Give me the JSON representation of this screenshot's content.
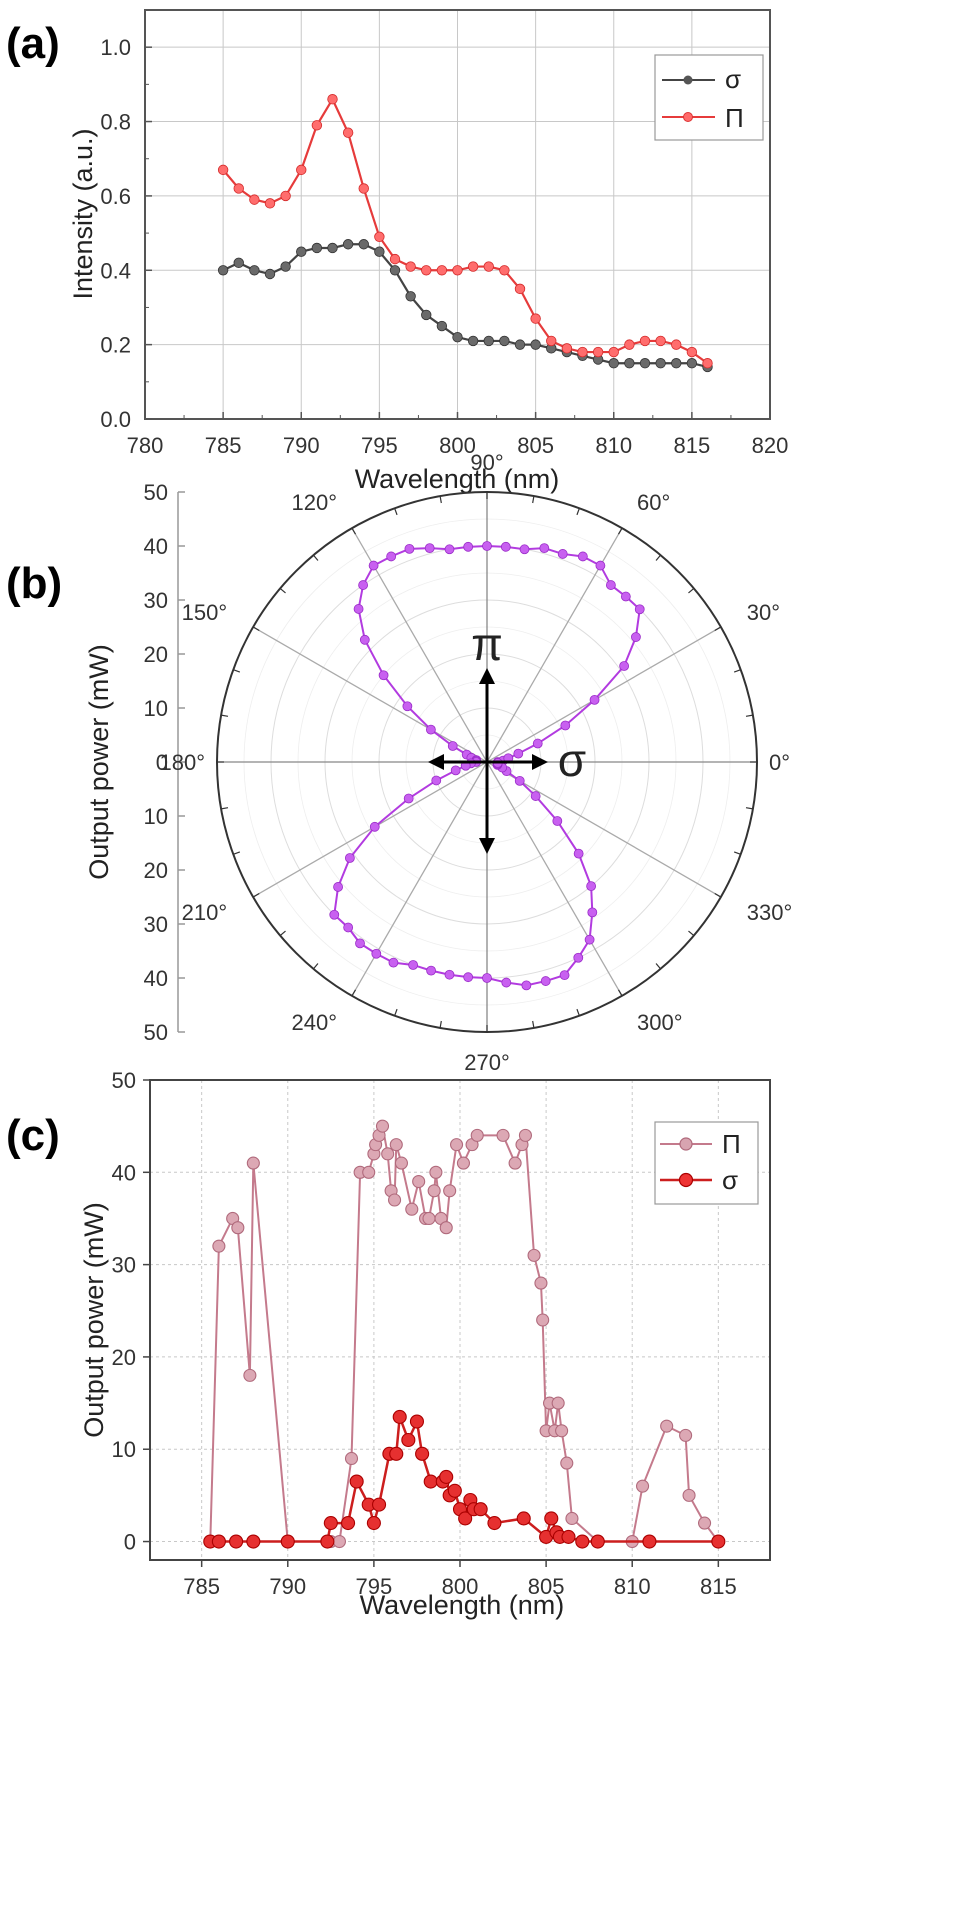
{
  "chart_data": [
    {
      "type": "line",
      "panel": "(a)",
      "xlabel": "Wavelength (nm)",
      "ylabel": "Intensity (a.u.)",
      "xlim": [
        780,
        820
      ],
      "ylim": [
        0.0,
        1.1
      ],
      "xticks": [
        "780",
        "785",
        "790",
        "795",
        "800",
        "805",
        "810",
        "815",
        "820"
      ],
      "yticks": [
        "0.0",
        "0.2",
        "0.4",
        "0.6",
        "0.8",
        "1.0"
      ],
      "grid": true,
      "legend_position": "top-right",
      "series": [
        {
          "name": "σ",
          "color": "#444444",
          "x": [
            785,
            786,
            787,
            788,
            789,
            790,
            791,
            792,
            793,
            794,
            795,
            796,
            797,
            798,
            799,
            800,
            801,
            802,
            803,
            804,
            805,
            806,
            807,
            808,
            809,
            810,
            811,
            812,
            813,
            814,
            815,
            816
          ],
          "y": [
            0.4,
            0.42,
            0.4,
            0.39,
            0.41,
            0.45,
            0.46,
            0.46,
            0.47,
            0.47,
            0.45,
            0.4,
            0.33,
            0.28,
            0.25,
            0.22,
            0.21,
            0.21,
            0.21,
            0.2,
            0.2,
            0.19,
            0.18,
            0.17,
            0.16,
            0.15,
            0.15,
            0.15,
            0.15,
            0.15,
            0.15,
            0.14
          ]
        },
        {
          "name": "Π",
          "color": "#e63b3b",
          "x": [
            785,
            786,
            787,
            788,
            789,
            790,
            791,
            792,
            793,
            794,
            795,
            796,
            797,
            798,
            799,
            800,
            801,
            802,
            803,
            804,
            805,
            806,
            807,
            808,
            809,
            810,
            811,
            812,
            813,
            814,
            815,
            816
          ],
          "y": [
            0.67,
            0.62,
            0.59,
            0.58,
            0.6,
            0.67,
            0.79,
            0.86,
            0.77,
            0.62,
            0.49,
            0.43,
            0.41,
            0.4,
            0.4,
            0.4,
            0.41,
            0.41,
            0.4,
            0.35,
            0.27,
            0.21,
            0.19,
            0.18,
            0.18,
            0.18,
            0.2,
            0.21,
            0.21,
            0.2,
            0.18,
            0.15
          ]
        }
      ]
    },
    {
      "type": "polar",
      "panel": "(b)",
      "ylabel": "Output power (mW)",
      "rlim": [
        0,
        50
      ],
      "rticks": [
        "50",
        "40",
        "30",
        "20",
        "10",
        "0",
        "10",
        "20",
        "30",
        "40",
        "50"
      ],
      "angle_labels": [
        "0°",
        "30°",
        "60°",
        "90°",
        "120°",
        "150°",
        "180°",
        "210°",
        "240°",
        "270°",
        "300°",
        "330°"
      ],
      "annotations": [
        "π",
        "σ"
      ],
      "series": [
        {
          "name": "",
          "color": "#b23be0",
          "theta": [
            0,
            5,
            10,
            15,
            20,
            25,
            30,
            35,
            40,
            45,
            50,
            55,
            60,
            65,
            70,
            75,
            80,
            85,
            90,
            95,
            100,
            105,
            110,
            115,
            120,
            125,
            130,
            135,
            140,
            145,
            150,
            155,
            160,
            165,
            170,
            175,
            180,
            185,
            190,
            195,
            200,
            205,
            210,
            215,
            220,
            225,
            230,
            235,
            240,
            245,
            250,
            255,
            260,
            265,
            270,
            275,
            280,
            285,
            290,
            295,
            300,
            305,
            310,
            315,
            320,
            325,
            330,
            335,
            340,
            345,
            350,
            355
          ],
          "r": [
            2,
            3,
            4,
            6,
            10,
            16,
            23,
            31,
            36,
            40,
            40,
            40,
            42,
            42,
            41,
            41,
            40,
            40,
            40,
            40,
            40,
            41,
            42,
            42,
            42,
            40,
            37,
            32,
            25,
            18,
            12,
            7,
            4,
            3,
            2,
            2,
            2,
            3,
            4,
            6,
            10,
            16,
            24,
            31,
            36,
            40,
            40,
            41,
            41,
            41,
            40,
            40,
            40,
            40,
            40,
            41,
            42,
            42,
            42,
            40,
            38,
            34,
            30,
            24,
            17,
            11,
            7,
            4,
            3,
            2,
            2,
            2
          ]
        }
      ]
    },
    {
      "type": "line",
      "panel": "(c)",
      "xlabel": "Wavelength (nm)",
      "ylabel": "Output power (mW)",
      "xlim": [
        782,
        818
      ],
      "ylim": [
        -2,
        50
      ],
      "xticks": [
        "785",
        "790",
        "795",
        "800",
        "805",
        "810",
        "815"
      ],
      "yticks": [
        "0",
        "10",
        "20",
        "30",
        "40",
        "50"
      ],
      "grid": true,
      "legend_position": "top-right",
      "series": [
        {
          "name": "Π",
          "color": "#c47a8c",
          "x": [
            785.5,
            786.0,
            786.8,
            787.1,
            787.8,
            788.0,
            790.0,
            792.5,
            793.0,
            793.7,
            794.2,
            794.7,
            795.0,
            795.1,
            795.3,
            795.5,
            795.8,
            796.0,
            796.2,
            796.3,
            796.6,
            797.2,
            797.6,
            798.0,
            798.2,
            798.5,
            798.6,
            798.9,
            799.2,
            799.4,
            799.8,
            800.2,
            800.7,
            801.0,
            802.5,
            803.2,
            803.6,
            803.8,
            804.3,
            804.7,
            804.8,
            805.0,
            805.2,
            805.5,
            805.7,
            805.9,
            806.2,
            806.5,
            808.0,
            810.0,
            810.6,
            812.0,
            813.1,
            813.3,
            814.2,
            815.0
          ],
          "y": [
            0,
            32,
            35,
            34,
            18,
            41,
            0,
            0,
            0,
            9,
            40,
            40,
            42,
            43,
            44,
            45,
            42,
            38,
            37,
            43,
            41,
            36,
            39,
            35,
            35,
            38,
            40,
            35,
            34,
            38,
            43,
            41,
            43,
            44,
            44,
            41,
            43,
            44,
            31,
            28,
            24,
            12,
            15,
            12,
            15,
            12,
            8.5,
            2.5,
            0,
            0,
            6,
            12.5,
            11.5,
            5,
            2,
            0
          ]
        },
        {
          "name": "σ",
          "color": "#cc1e1e",
          "x": [
            785.5,
            786.0,
            787.0,
            788.0,
            790.0,
            792.3,
            792.5,
            793.5,
            794.0,
            794.7,
            795.0,
            795.3,
            795.9,
            796.3,
            796.5,
            797.0,
            797.5,
            797.8,
            798.3,
            799.0,
            799.2,
            799.4,
            799.7,
            800.0,
            800.3,
            800.6,
            800.8,
            801.2,
            802.0,
            803.7,
            805.0,
            805.3,
            805.6,
            805.8,
            806.3,
            807.1,
            808.0,
            811.0,
            815.0
          ],
          "y": [
            0,
            0,
            0,
            0,
            0,
            0,
            2,
            2,
            6.5,
            4,
            2,
            4,
            9.5,
            9.5,
            13.5,
            11,
            13,
            9.5,
            6.5,
            6.5,
            7,
            5,
            5.5,
            3.5,
            2.5,
            4.5,
            3.5,
            3.5,
            2,
            2.5,
            0.5,
            2.5,
            1,
            0.5,
            0.5,
            0,
            0,
            0,
            0
          ]
        }
      ]
    }
  ]
}
